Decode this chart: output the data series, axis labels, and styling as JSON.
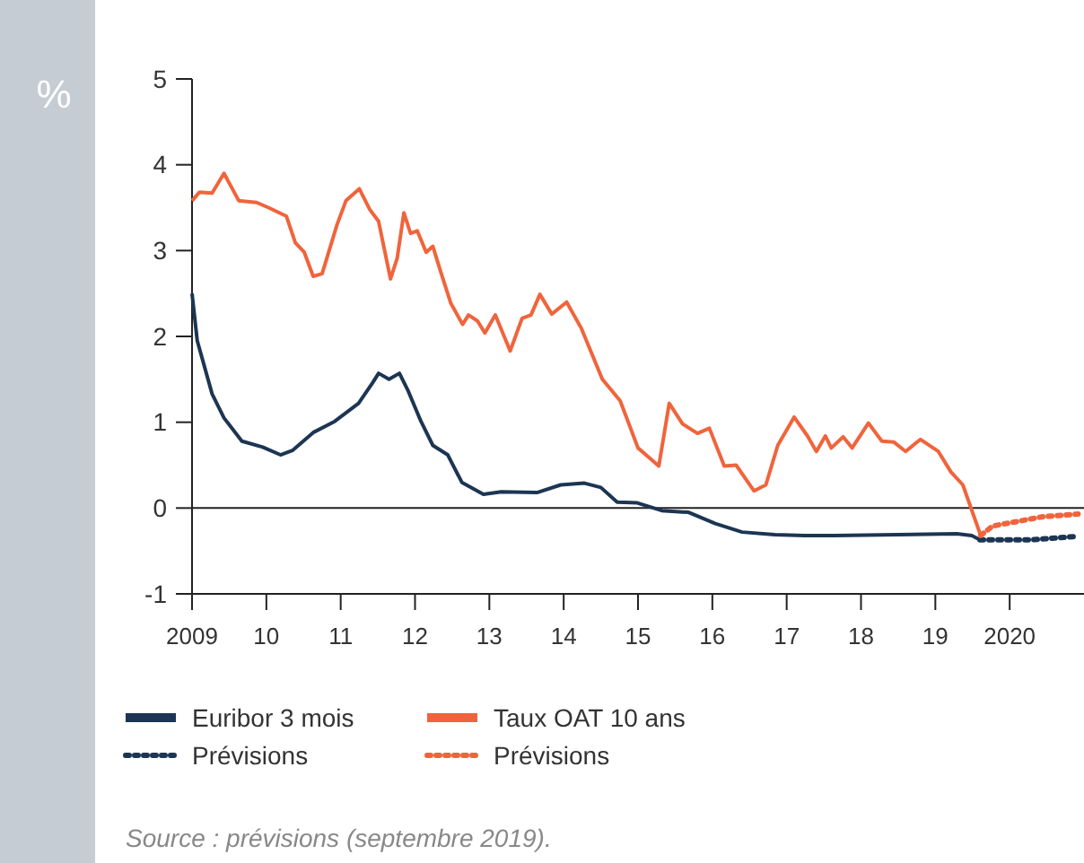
{
  "chart_data": {
    "type": "line",
    "ylabel": "%",
    "xlim": [
      2009,
      2021
    ],
    "ylim": [
      -1,
      5
    ],
    "xticks": [
      2009,
      {
        "value": 2010,
        "label": "10"
      },
      {
        "value": 2011,
        "label": "11"
      },
      {
        "value": 2012,
        "label": "12"
      },
      {
        "value": 2013,
        "label": "13"
      },
      {
        "value": 2014,
        "label": "14"
      },
      {
        "value": 2015,
        "label": "15"
      },
      {
        "value": 2016,
        "label": "16"
      },
      {
        "value": 2017,
        "label": "17"
      },
      {
        "value": 2018,
        "label": "18"
      },
      {
        "value": 2019,
        "label": "19"
      },
      2020
    ],
    "yticks": [
      -1,
      0,
      1,
      2,
      3,
      4,
      5
    ],
    "grid": false,
    "legend": "bottom",
    "marker": "none",
    "ref_lines": [
      {
        "axis": "y",
        "value": 0,
        "color": "#222222"
      }
    ],
    "series": [
      {
        "name": "Euribor 3 mois",
        "color": "#1c3553",
        "line_style": "solid",
        "x": [
          2009,
          2009.07,
          2009.27,
          2009.43,
          2009.67,
          2009.95,
          2010.19,
          2010.35,
          2010.63,
          2010.92,
          2011.24,
          2011.43,
          2011.51,
          2011.65,
          2011.79,
          2011.91,
          2012.08,
          2012.24,
          2012.44,
          2012.63,
          2012.92,
          2013.16,
          2013.64,
          2013.96,
          2014.28,
          2014.5,
          2014.72,
          2014.99,
          2015.32,
          2015.68,
          2016.04,
          2016.4,
          2016.84,
          2017.24,
          2017.64,
          2018.49,
          2019.29,
          2019.49,
          2019.6
        ],
        "values": [
          2.5,
          1.95,
          1.33,
          1.05,
          0.78,
          0.71,
          0.62,
          0.67,
          0.88,
          1.01,
          1.22,
          1.46,
          1.57,
          1.5,
          1.57,
          1.36,
          1.01,
          0.73,
          0.62,
          0.3,
          0.16,
          0.19,
          0.18,
          0.27,
          0.29,
          0.24,
          0.07,
          0.06,
          -0.03,
          -0.05,
          -0.18,
          -0.28,
          -0.31,
          -0.32,
          -0.32,
          -0.31,
          -0.3,
          -0.32,
          -0.37
        ]
      },
      {
        "name": "Taux OAT 10 ans",
        "color": "#f0643c",
        "line_style": "solid",
        "x": [
          2009,
          2009.1,
          2009.27,
          2009.43,
          2009.63,
          2009.87,
          2010.03,
          2010.27,
          2010.39,
          2010.51,
          2010.63,
          2010.75,
          2010.95,
          2011.07,
          2011.25,
          2011.39,
          2011.51,
          2011.67,
          2011.76,
          2011.85,
          2011.94,
          2012.03,
          2012.15,
          2012.24,
          2012.35,
          2012.48,
          2012.64,
          2012.72,
          2012.84,
          2012.94,
          2013.08,
          2013.28,
          2013.44,
          2013.56,
          2013.68,
          2013.84,
          2014.04,
          2014.24,
          2014.52,
          2014.76,
          2015.0,
          2015.28,
          2015.42,
          2015.6,
          2015.8,
          2015.96,
          2016.16,
          2016.32,
          2016.56,
          2016.72,
          2016.88,
          2017.1,
          2017.28,
          2017.4,
          2017.52,
          2017.6,
          2017.76,
          2017.88,
          2018.1,
          2018.28,
          2018.44,
          2018.6,
          2018.8,
          2019.04,
          2019.21,
          2019.37,
          2019.61
        ],
        "values": [
          3.58,
          3.68,
          3.67,
          3.9,
          3.58,
          3.56,
          3.5,
          3.4,
          3.09,
          2.98,
          2.7,
          2.73,
          3.3,
          3.58,
          3.72,
          3.48,
          3.34,
          2.67,
          2.91,
          3.44,
          3.2,
          3.23,
          2.98,
          3.05,
          2.74,
          2.39,
          2.14,
          2.25,
          2.18,
          2.04,
          2.25,
          1.83,
          2.21,
          2.25,
          2.49,
          2.26,
          2.4,
          2.09,
          1.5,
          1.25,
          0.7,
          0.49,
          1.22,
          0.98,
          0.87,
          0.93,
          0.49,
          0.5,
          0.2,
          0.27,
          0.73,
          1.06,
          0.84,
          0.66,
          0.84,
          0.7,
          0.83,
          0.7,
          0.99,
          0.78,
          0.77,
          0.66,
          0.8,
          0.66,
          0.42,
          0.27,
          -0.32
        ]
      },
      {
        "name": "Prévisions",
        "color": "#1c3553",
        "line_style": "dotted",
        "x": [
          2019.6,
          2020.29,
          2020.92
        ],
        "values": [
          -0.37,
          -0.37,
          -0.33
        ]
      },
      {
        "name": "Prévisions",
        "color": "#f0643c",
        "line_style": "dotted",
        "x": [
          2019.61,
          2019.77,
          2020.45,
          2020.92
        ],
        "values": [
          -0.32,
          -0.21,
          -0.1,
          -0.07
        ]
      }
    ],
    "annotations": [
      "Source : prévisions (septembre 2019)."
    ]
  }
}
